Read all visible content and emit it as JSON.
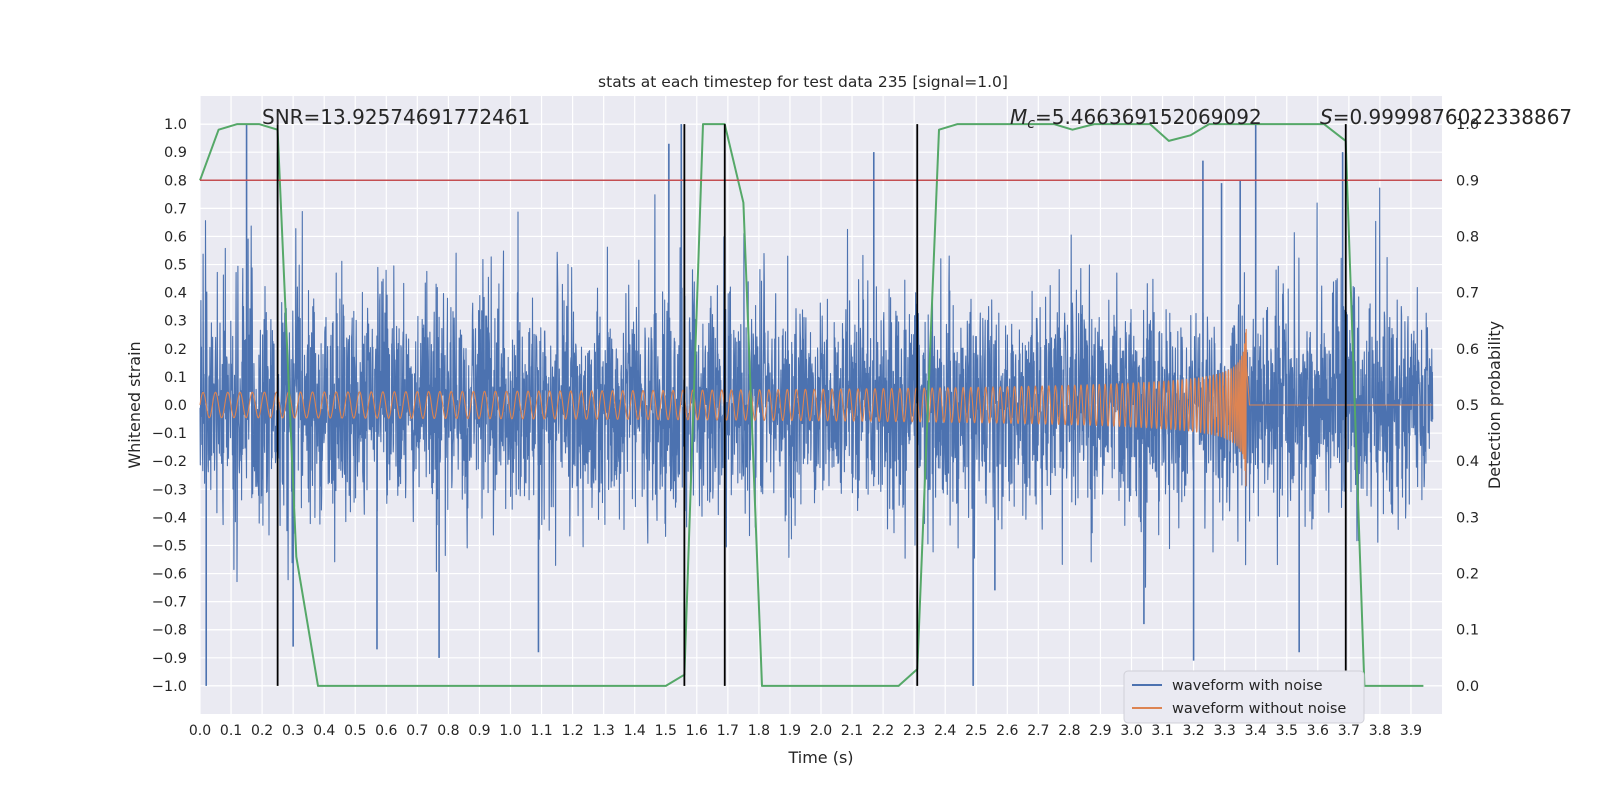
{
  "chart_data": {
    "type": "line",
    "title": "stats at each timestep for test data 235 [signal=1.0]",
    "xlabel": "Time (s)",
    "ylabel": "Whitened strain",
    "y2label": "Detection probability",
    "xlim": [
      0.0,
      4.0
    ],
    "ylim": [
      -1.1,
      1.1
    ],
    "y2lim": [
      -0.05,
      1.05
    ],
    "xticks": [
      "0.0",
      "0.1",
      "0.2",
      "0.3",
      "0.4",
      "0.5",
      "0.6",
      "0.7",
      "0.8",
      "0.9",
      "1.0",
      "1.1",
      "1.2",
      "1.3",
      "1.4",
      "1.5",
      "1.6",
      "1.7",
      "1.8",
      "1.9",
      "2.0",
      "2.1",
      "2.2",
      "2.3",
      "2.4",
      "2.5",
      "2.6",
      "2.7",
      "2.8",
      "2.9",
      "3.0",
      "3.1",
      "3.2",
      "3.3",
      "3.4",
      "3.5",
      "3.6",
      "3.7",
      "3.8",
      "3.9"
    ],
    "yticks": [
      "1.0",
      "0.9",
      "0.8",
      "0.7",
      "0.6",
      "0.5",
      "0.4",
      "0.3",
      "0.2",
      "0.1",
      "0.0",
      "−0.1",
      "−0.2",
      "−0.3",
      "−0.4",
      "−0.5",
      "−0.6",
      "−0.7",
      "−0.8",
      "−0.9",
      "−1.0"
    ],
    "y2ticks": [
      "1.0",
      "0.9",
      "0.8",
      "0.7",
      "0.6",
      "0.5",
      "0.4",
      "0.3",
      "0.2",
      "0.1",
      "0.0"
    ],
    "grid": true,
    "legend_position": "bottom-right",
    "annotations": {
      "snr": "SNR=13.92574691772461",
      "mc_symbol": "M",
      "mc_sub": "c",
      "mc_value": "=5.466369152069092",
      "s_symbol": "S",
      "s_value": "=0.9999876022338867"
    },
    "threshold": 0.9,
    "vertical_lines": [
      0.25,
      1.56,
      1.69,
      2.31,
      3.69
    ],
    "series": [
      {
        "name": "waveform with noise",
        "color": "#4c72b0",
        "kind": "noise",
        "spikes": [
          [
            0.02,
            -1.0
          ],
          [
            0.15,
            1.0
          ],
          [
            0.25,
            0.9
          ],
          [
            0.3,
            -0.86
          ],
          [
            0.57,
            -0.87
          ],
          [
            0.77,
            -0.9
          ],
          [
            1.09,
            -0.88
          ],
          [
            1.51,
            0.93
          ],
          [
            1.55,
            1.0
          ],
          [
            2.17,
            0.9
          ],
          [
            2.49,
            -1.0
          ],
          [
            2.56,
            -0.66
          ],
          [
            3.04,
            -0.78
          ],
          [
            3.2,
            -0.91
          ],
          [
            3.23,
            0.87
          ],
          [
            3.29,
            0.79
          ],
          [
            3.35,
            0.8
          ],
          [
            3.4,
            1.0
          ],
          [
            3.54,
            -0.88
          ],
          [
            3.68,
            0.9
          ]
        ]
      },
      {
        "name": "waveform without noise",
        "color": "#dd8452",
        "kind": "chirp",
        "t_merge": 3.37,
        "amplitude_start": 0.045,
        "freq_start": 25
      },
      {
        "name": "detection probability",
        "color": "#55a868",
        "axis": "right",
        "x": [
          0.0,
          0.06,
          0.12,
          0.19,
          0.25,
          0.31,
          0.38,
          0.44,
          0.5,
          0.56,
          0.62,
          0.69,
          0.75,
          0.81,
          0.88,
          0.94,
          1.0,
          1.06,
          1.12,
          1.19,
          1.25,
          1.31,
          1.38,
          1.44,
          1.5,
          1.56,
          1.62,
          1.69,
          1.75,
          1.81,
          1.88,
          1.94,
          2.0,
          2.06,
          2.12,
          2.19,
          2.25,
          2.31,
          2.38,
          2.44,
          2.5,
          2.56,
          2.62,
          2.69,
          2.75,
          2.81,
          2.88,
          2.94,
          3.0,
          3.06,
          3.12,
          3.19,
          3.25,
          3.31,
          3.38,
          3.44,
          3.5,
          3.56,
          3.62,
          3.69,
          3.75,
          3.81,
          3.88,
          3.94
        ],
        "y": [
          0.9,
          0.99,
          1.0,
          1.0,
          0.99,
          0.23,
          0.0,
          0.0,
          0.0,
          0.0,
          0.0,
          0.0,
          0.0,
          0.0,
          0.0,
          0.0,
          0.0,
          0.0,
          0.0,
          0.0,
          0.0,
          0.0,
          0.0,
          0.0,
          0.0,
          0.02,
          1.0,
          1.0,
          0.86,
          0.0,
          0.0,
          0.0,
          0.0,
          0.0,
          0.0,
          0.0,
          0.0,
          0.03,
          0.99,
          1.0,
          1.0,
          1.0,
          1.0,
          1.0,
          1.0,
          0.99,
          1.0,
          1.0,
          1.0,
          1.0,
          0.97,
          0.98,
          1.0,
          1.0,
          1.0,
          1.0,
          1.0,
          1.0,
          1.0,
          0.97,
          0.0,
          0.0,
          0.0,
          0.0
        ]
      }
    ]
  }
}
